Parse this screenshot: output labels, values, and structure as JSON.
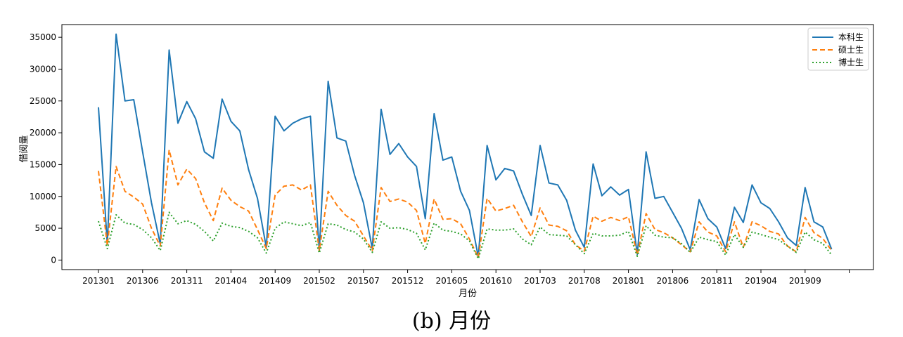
{
  "figure": {
    "caption": "(b) 月份"
  },
  "chart_data": {
    "type": "line",
    "xlabel": "月份",
    "ylabel": "借阅量",
    "ylim": [
      -1500,
      37000
    ],
    "yticks": [
      0,
      5000,
      10000,
      15000,
      20000,
      25000,
      30000,
      35000
    ],
    "xtick_labels": [
      "201301",
      "201306",
      "201311",
      "201404",
      "201409",
      "201502",
      "201507",
      "201512",
      "201605",
      "201610",
      "201703",
      "201708",
      "201801",
      "201806",
      "201811",
      "201904",
      "201909"
    ],
    "grid": false,
    "legend_position": "top-right",
    "x": [
      "201301",
      "201302",
      "201303",
      "201304",
      "201305",
      "201306",
      "201307",
      "201308",
      "201309",
      "201310",
      "201311",
      "201312",
      "201401",
      "201402",
      "201403",
      "201404",
      "201405",
      "201406",
      "201407",
      "201408",
      "201409",
      "201410",
      "201411",
      "201412",
      "201501",
      "201502",
      "201503",
      "201504",
      "201505",
      "201506",
      "201507",
      "201508",
      "201509",
      "201510",
      "201511",
      "201512",
      "201601",
      "201602",
      "201603",
      "201604",
      "201605",
      "201606",
      "201607",
      "201608",
      "201609",
      "201610",
      "201611",
      "201612",
      "201701",
      "201702",
      "201703",
      "201704",
      "201705",
      "201706",
      "201707",
      "201708",
      "201709",
      "201710",
      "201711",
      "201712",
      "201801",
      "201802",
      "201803",
      "201804",
      "201805",
      "201806",
      "201807",
      "201808",
      "201809",
      "201810",
      "201811",
      "201812",
      "201901",
      "201902",
      "201903",
      "201904",
      "201905",
      "201906",
      "201907",
      "201908",
      "201909",
      "201910",
      "201911",
      "201912"
    ],
    "series": [
      {
        "name": "本科生",
        "color": "#1f77b4",
        "style": "solid",
        "values": [
          24000,
          2500,
          35500,
          25000,
          25200,
          17000,
          9000,
          2500,
          33000,
          21500,
          24900,
          22200,
          17000,
          16000,
          25300,
          21800,
          20300,
          14200,
          9700,
          2000,
          22600,
          20300,
          21500,
          22200,
          22600,
          1500,
          28100,
          19200,
          18700,
          13300,
          9000,
          1800,
          23700,
          16600,
          18300,
          16200,
          14700,
          6500,
          23000,
          15700,
          16200,
          10800,
          7800,
          500,
          18000,
          12600,
          14400,
          14000,
          10300,
          7000,
          18000,
          12100,
          11800,
          9400,
          4700,
          2000,
          15100,
          10100,
          11500,
          10200,
          11100,
          900,
          17000,
          9700,
          10000,
          7500,
          5000,
          1600,
          9500,
          6500,
          5200,
          1800,
          8300,
          5900,
          11800,
          9000,
          8100,
          6000,
          3500,
          2300,
          11400,
          6000,
          5200,
          1700
        ]
      },
      {
        "name": "硕士生",
        "color": "#ff7f0e",
        "style": "dashed",
        "values": [
          14000,
          2300,
          14700,
          10800,
          9900,
          8800,
          5000,
          2200,
          17300,
          11800,
          14300,
          12800,
          9000,
          6200,
          11300,
          9400,
          8400,
          7700,
          4800,
          1800,
          10200,
          11600,
          11800,
          11000,
          11800,
          1500,
          10800,
          8600,
          7000,
          6100,
          3800,
          1500,
          11400,
          9200,
          9600,
          9100,
          7800,
          2600,
          9600,
          6400,
          6500,
          5700,
          3300,
          400,
          9700,
          7700,
          8100,
          8600,
          6000,
          3700,
          8200,
          5500,
          5300,
          4600,
          2400,
          1400,
          6900,
          6100,
          6700,
          6200,
          6800,
          800,
          7300,
          4800,
          4300,
          3500,
          2400,
          1300,
          6000,
          4400,
          3800,
          1300,
          6000,
          2000,
          6000,
          5400,
          4500,
          4100,
          2200,
          1300,
          6700,
          4300,
          3400,
          1500
        ]
      },
      {
        "name": "博士生",
        "color": "#2ca02c",
        "style": "dotted",
        "values": [
          6100,
          1800,
          7100,
          5800,
          5600,
          4800,
          3500,
          1500,
          7500,
          5700,
          6200,
          5600,
          4500,
          3000,
          5800,
          5300,
          5100,
          4500,
          3500,
          1100,
          5000,
          6000,
          5700,
          5400,
          5900,
          1100,
          5700,
          5500,
          4800,
          4400,
          3300,
          1200,
          6000,
          5000,
          5100,
          4800,
          4200,
          1600,
          5800,
          4700,
          4500,
          4100,
          3000,
          200,
          4900,
          4700,
          4700,
          4900,
          3300,
          2400,
          5200,
          4000,
          3900,
          3800,
          2400,
          1000,
          4200,
          3800,
          3800,
          3900,
          4500,
          600,
          5400,
          3900,
          3600,
          3500,
          2600,
          1200,
          3600,
          3200,
          2900,
          800,
          4000,
          2000,
          4400,
          4000,
          3600,
          3200,
          2200,
          1200,
          4400,
          3200,
          2600,
          800
        ]
      }
    ]
  }
}
